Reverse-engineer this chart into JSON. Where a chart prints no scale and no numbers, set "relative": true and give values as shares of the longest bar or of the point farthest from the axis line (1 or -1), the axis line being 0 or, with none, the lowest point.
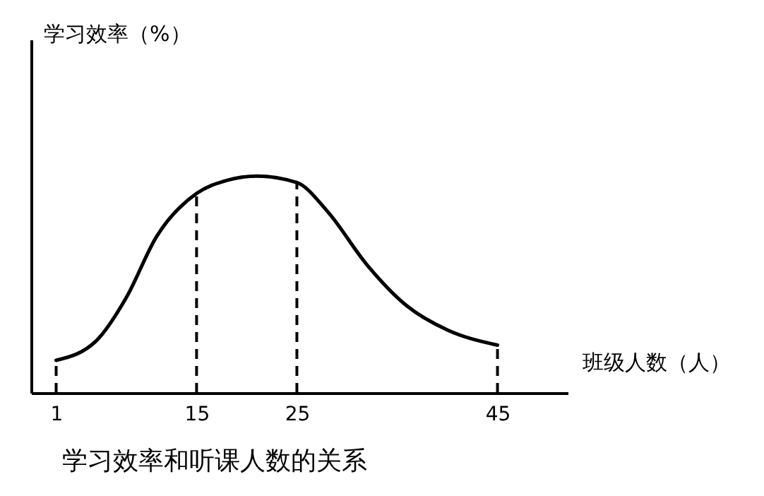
{
  "chart_data": {
    "type": "line",
    "title": "学习效率和听课人数的关系",
    "xlabel": "班级人数（人）",
    "annotations": [
      "学习效率（%）"
    ],
    "x": [
      1,
      5,
      8,
      11,
      15,
      18,
      21,
      25,
      28,
      32,
      36,
      40,
      45
    ],
    "values": [
      0.15,
      0.24,
      0.44,
      0.72,
      0.92,
      0.98,
      1,
      0.97,
      0.84,
      0.59,
      0.4,
      0.29,
      0.22
    ],
    "color": "#000000",
    "relative": true,
    "tick_labels": "x",
    "xlim": [
      -1.5,
      52
    ],
    "xticks": [
      1,
      15,
      25,
      45
    ],
    "ref_lines": [
      {
        "axis": "x",
        "value": 1,
        "line_style": "dashed"
      },
      {
        "axis": "x",
        "value": 15,
        "line_style": "dashed"
      },
      {
        "axis": "x",
        "value": 25,
        "line_style": "dashed"
      },
      {
        "axis": "x",
        "value": 45,
        "line_style": "dashed"
      }
    ]
  }
}
